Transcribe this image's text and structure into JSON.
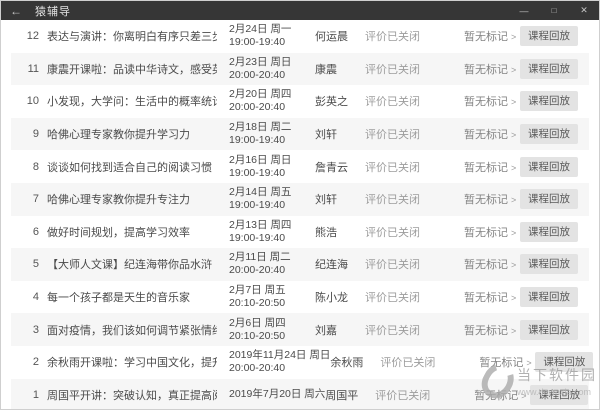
{
  "titlebar": {
    "back_icon": "←",
    "title": "猿辅导",
    "minimize_icon": "—",
    "maximize_icon": "□",
    "close_icon": "✕"
  },
  "list": {
    "status_label": "评价已关闭",
    "mark_label": "暂无标记",
    "mark_chevron": ">",
    "action_label": "课程回放",
    "rows": [
      {
        "num": "12",
        "title": "表达与演讲：你离明白有序只差三步",
        "date": "2月24日 周一",
        "time": "19:00-19:40",
        "teacher": "何运晨"
      },
      {
        "num": "11",
        "title": "康震开课啦：品读中华诗文，感受英雄力量",
        "date": "2月23日 周日",
        "time": "20:00-20:40",
        "teacher": "康震"
      },
      {
        "num": "10",
        "title": "小发现，大学问：生活中的概率统计思维",
        "date": "2月20日 周四",
        "time": "20:00-20:40",
        "teacher": "彭英之"
      },
      {
        "num": "9",
        "title": "哈佛心理专家教你提升学习力",
        "date": "2月18日 周二",
        "time": "19:00-19:40",
        "teacher": "刘轩"
      },
      {
        "num": "8",
        "title": "谈谈如何找到适合自己的阅读习惯",
        "date": "2月16日 周日",
        "time": "19:00-19:40",
        "teacher": "詹青云"
      },
      {
        "num": "7",
        "title": "哈佛心理专家教你提升专注力",
        "date": "2月14日 周五",
        "time": "19:00-19:40",
        "teacher": "刘轩"
      },
      {
        "num": "6",
        "title": "做好时间规划，提高学习效率",
        "date": "2月13日 周四",
        "time": "19:00-19:40",
        "teacher": "熊浩"
      },
      {
        "num": "5",
        "title": "【大师人文课】纪连海带你品水浒",
        "date": "2月11日 周二",
        "time": "20:00-20:40",
        "teacher": "纪连海"
      },
      {
        "num": "4",
        "title": "每一个孩子都是天生的音乐家",
        "date": "2月7日 周五",
        "time": "20:10-20:50",
        "teacher": "陈小龙"
      },
      {
        "num": "3",
        "title": "面对疫情，我们该如何调节紧张情绪",
        "date": "2月6日 周四",
        "time": "20:10-20:50",
        "teacher": "刘嘉"
      },
      {
        "num": "2",
        "title": "余秋雨开课啦：学习中国文化，提升文学素养",
        "date": "2019年11月24日 周日",
        "time": "20:00-20:40",
        "teacher": "余秋雨"
      },
      {
        "num": "1",
        "title": "周国平开讲：突破认知，真正提高阅读与写作能力",
        "date": "2019年7月20日 周六",
        "time": "",
        "teacher": "周国平"
      }
    ]
  },
  "watermark": {
    "site": "当下软件园",
    "url": "www.downxia.com"
  },
  "colors": {
    "titlebar_bg": "#363636",
    "titlebar_text": "#e2e2e2",
    "row_alt_bg": "#f6f6f6",
    "body_text": "#4a4a4a",
    "status_text": "#9c9c9c",
    "button_bg": "#e3e3e3",
    "watermark_gray": "#9e9e9e"
  }
}
